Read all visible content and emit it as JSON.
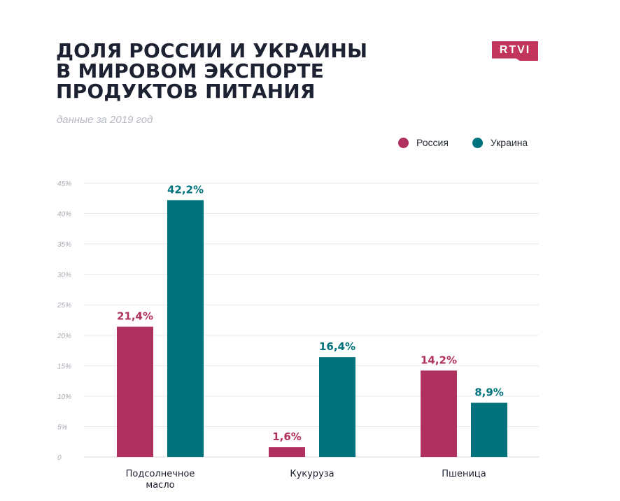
{
  "title_lines": [
    "ДОЛЯ РОССИИ И УКРАИНЫ",
    "В МИРОВОМ ЭКСПОРТЕ",
    "ПРОДУКТОВ ПИТАНИЯ"
  ],
  "subtitle": "данные за 2019 год",
  "logo_text": "RTVI",
  "colors": {
    "russia": "#b0305f",
    "ukraine": "#01737d",
    "logo": "#c2365e"
  },
  "chart_data": {
    "type": "bar",
    "categories": [
      [
        "Подсолнечное",
        "масло"
      ],
      [
        "Кукуруза"
      ],
      [
        "Пшеница"
      ]
    ],
    "series": [
      {
        "name": "Россия",
        "values": [
          21.4,
          1.6,
          14.2
        ],
        "labels": [
          "21,4%",
          "1,6%",
          "14,2%"
        ]
      },
      {
        "name": "Украина",
        "values": [
          42.2,
          16.4,
          8.9
        ],
        "labels": [
          "42,2%",
          "16,4%",
          "8,9%"
        ]
      }
    ],
    "yticks": [
      "0",
      "5%",
      "10%",
      "15%",
      "20%",
      "25%",
      "30%",
      "35%",
      "40%",
      "45%"
    ],
    "ylim": [
      0,
      45
    ],
    "grid": true,
    "legend": "top-right"
  }
}
